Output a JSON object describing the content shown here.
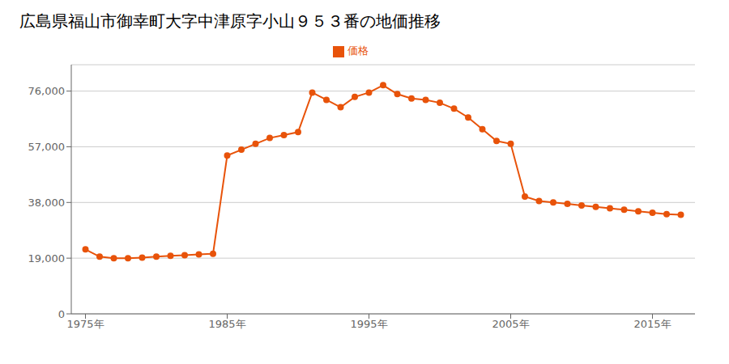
{
  "chart_data": {
    "type": "line",
    "title": "広島県福山市御幸町大字中津原字小山９５３番の地価推移",
    "x": [
      1975,
      1976,
      1977,
      1978,
      1979,
      1980,
      1981,
      1982,
      1983,
      1984,
      1985,
      1986,
      1987,
      1988,
      1989,
      1990,
      1991,
      1992,
      1993,
      1994,
      1995,
      1996,
      1997,
      1998,
      1999,
      2000,
      2001,
      2002,
      2003,
      2004,
      2005,
      2006,
      2007,
      2008,
      2009,
      2010,
      2011,
      2012,
      2013,
      2014,
      2015,
      2016,
      2017
    ],
    "series": [
      {
        "name": "価格",
        "color": "#E8530A",
        "marker": "circle",
        "values": [
          22000,
          19500,
          19000,
          19000,
          19200,
          19500,
          19800,
          20000,
          20300,
          20500,
          54000,
          56000,
          58000,
          60000,
          61000,
          62000,
          75500,
          73000,
          70500,
          74000,
          75500,
          78000,
          75000,
          73500,
          73000,
          72000,
          70000,
          67000,
          63000,
          59000,
          58000,
          40000,
          38500,
          38000,
          37500,
          37000,
          36500,
          36000,
          35500,
          35000,
          34500,
          34000,
          33800
        ]
      }
    ],
    "xlim": [
      1974,
      2018
    ],
    "xticks": [
      {
        "value": 1975,
        "label": "1975年"
      },
      {
        "value": 1985,
        "label": "1985年"
      },
      {
        "value": 1995,
        "label": "1995年"
      },
      {
        "value": 2005,
        "label": "2005年"
      },
      {
        "value": 2015,
        "label": "2015年"
      }
    ],
    "ylim": [
      0,
      85000
    ],
    "yticks": [
      0,
      {
        "value": 19000,
        "label": "19,000"
      },
      {
        "value": 38000,
        "label": "38,000"
      },
      {
        "value": 57000,
        "label": "57,000"
      },
      {
        "value": 76000,
        "label": "76,000"
      }
    ],
    "grid": "y",
    "legend": "top"
  }
}
